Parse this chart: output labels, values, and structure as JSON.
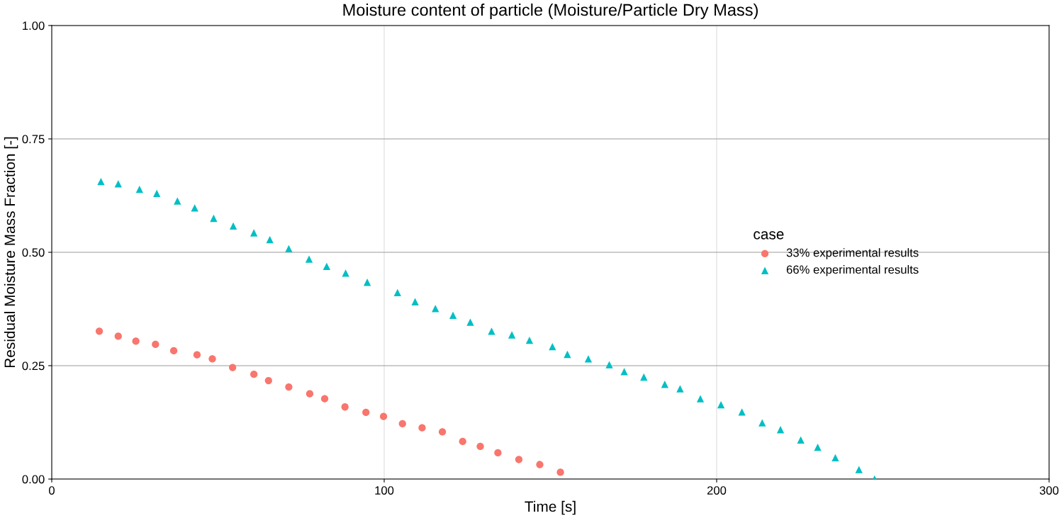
{
  "chart_data": {
    "type": "scatter",
    "title": "Moisture content of particle (Moisture/Particle Dry Mass)",
    "xlabel": "Time [s]",
    "ylabel": "Residual Moisture Mass Fraction [-]",
    "legend_title": "case",
    "legend": "right",
    "grid": true,
    "xlim": [
      0,
      300
    ],
    "xticks": [
      0,
      100,
      200,
      300
    ],
    "ylim": [
      0,
      1
    ],
    "yticks": [
      {
        "value": 0,
        "label": "0.00"
      },
      {
        "value": 0.25,
        "label": "0.25"
      },
      {
        "value": 0.5,
        "label": "0.50"
      },
      {
        "value": 0.75,
        "label": "0.75"
      },
      {
        "value": 1,
        "label": "1.00"
      }
    ],
    "series": [
      {
        "name": "33% experimental results",
        "color": "#f8766d",
        "marker": "circle",
        "x": [
          14.3,
          20.0,
          25.3,
          31.2,
          36.7,
          43.7,
          48.3,
          54.4,
          60.8,
          65.2,
          71.3,
          77.6,
          82.1,
          88.2,
          94.5,
          99.8,
          105.5,
          111.4,
          117.5,
          123.6,
          128.9,
          134.2,
          140.5,
          146.8,
          153.0
        ],
        "values": [
          0.326,
          0.315,
          0.304,
          0.297,
          0.283,
          0.274,
          0.265,
          0.246,
          0.231,
          0.217,
          0.203,
          0.188,
          0.177,
          0.159,
          0.147,
          0.138,
          0.122,
          0.113,
          0.104,
          0.083,
          0.072,
          0.058,
          0.043,
          0.032,
          0.015
        ]
      },
      {
        "name": "66% experimental results",
        "color": "#00bfc4",
        "marker": "triangle",
        "x": [
          14.8,
          20.0,
          26.4,
          31.6,
          37.8,
          43.0,
          48.7,
          54.6,
          60.8,
          65.6,
          71.3,
          77.4,
          82.7,
          88.4,
          94.9,
          104.0,
          109.3,
          115.4,
          120.7,
          125.9,
          132.3,
          138.4,
          143.7,
          150.6,
          155.1,
          161.4,
          167.7,
          172.2,
          178.1,
          184.4,
          189.0,
          195.1,
          201.3,
          207.6,
          213.7,
          219.2,
          225.3,
          230.4,
          235.7,
          242.8,
          247.5
        ],
        "values": [
          0.656,
          0.651,
          0.639,
          0.63,
          0.613,
          0.598,
          0.575,
          0.558,
          0.543,
          0.528,
          0.508,
          0.485,
          0.469,
          0.454,
          0.434,
          0.411,
          0.391,
          0.376,
          0.361,
          0.346,
          0.326,
          0.318,
          0.306,
          0.292,
          0.275,
          0.265,
          0.252,
          0.237,
          0.225,
          0.209,
          0.199,
          0.177,
          0.164,
          0.148,
          0.124,
          0.109,
          0.086,
          0.07,
          0.047,
          0.021,
          0.0
        ]
      }
    ]
  }
}
